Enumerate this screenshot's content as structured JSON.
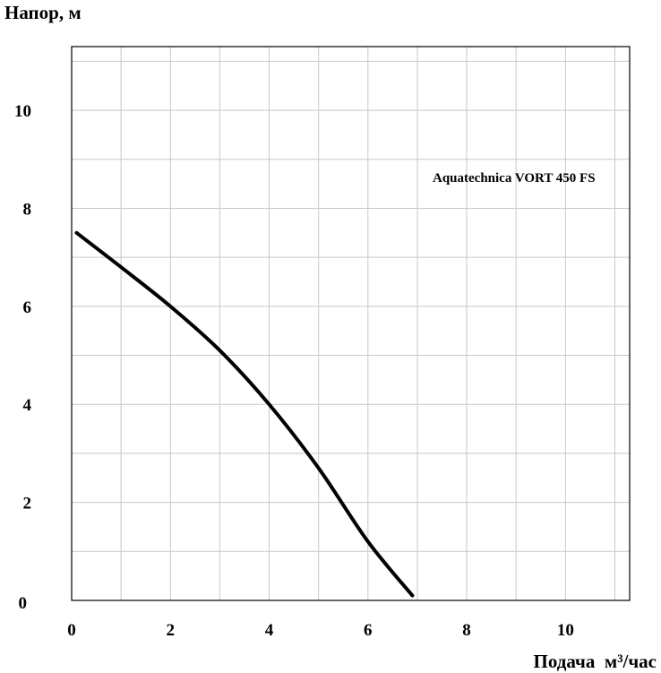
{
  "chart_data": {
    "type": "line",
    "title": "",
    "xlabel": "Подача  м³/час",
    "ylabel": "Напор, м",
    "xlim": [
      0,
      11.3
    ],
    "ylim": [
      0,
      11.3
    ],
    "x_ticks": [
      "0",
      "2",
      "4",
      "6",
      "8",
      "10"
    ],
    "x_tick_values": [
      0,
      2,
      4,
      6,
      8,
      10
    ],
    "y_ticks": [
      "0",
      "2",
      "4",
      "6",
      "8",
      "10"
    ],
    "y_tick_values": [
      0,
      2,
      4,
      6,
      8,
      10
    ],
    "grid": true,
    "grid_step": 1,
    "annotation": "Aquatechnica VORT 450 FS",
    "series": [
      {
        "name": "",
        "color": "#000000",
        "x": [
          0.1,
          1.0,
          2.0,
          3.0,
          4.0,
          5.0,
          6.0,
          6.9
        ],
        "y": [
          7.5,
          6.8,
          6.0,
          5.1,
          4.0,
          2.7,
          1.2,
          0.1
        ]
      }
    ]
  }
}
